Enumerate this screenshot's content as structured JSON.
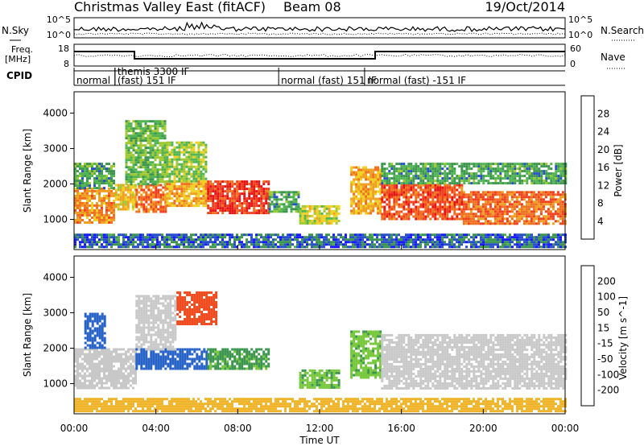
{
  "header": {
    "title": "Christmas Valley East (fitACF)",
    "beam": "Beam 08",
    "date": "19/Oct/2014"
  },
  "noise_panel": {
    "left_label": "N.Sky",
    "right_label": "N.Search",
    "left_ticks": [
      "10^5",
      "10^0"
    ],
    "right_ticks": [
      "10^5",
      "10^0"
    ]
  },
  "freq_panel": {
    "left_label_1": "Freq.",
    "left_label_2": "[MHz]",
    "right_label": "Nave",
    "left_ticks": [
      "18",
      "8"
    ],
    "right_ticks": [
      "60",
      "0"
    ]
  },
  "cpid": {
    "label": "CPID",
    "modes": [
      {
        "name": "normal",
        "start": 0,
        "end": 2
      },
      {
        "name": "themis 3300 IF",
        "start": 2,
        "end": 3,
        "row": 1
      },
      {
        "name": "(fast) 151 IF",
        "start": 2,
        "end": 10
      },
      {
        "name": "normal (fast) 151 IF",
        "start": 10,
        "end": 14.2
      },
      {
        "name": "normal (fast) -151 IF",
        "start": 14.2,
        "end": 24
      }
    ]
  },
  "chart_data": [
    {
      "type": "heatmap",
      "name": "Power",
      "ylabel": "Slant Range [km]",
      "xlabel": "",
      "xlim": [
        0,
        24
      ],
      "ylim": [
        150,
        4600
      ],
      "yticks": [
        1000,
        2000,
        3000,
        4000
      ],
      "colorbar": {
        "label": "Power [dB]",
        "ticks": [
          "4",
          "8",
          "12",
          "16",
          "20",
          "24",
          "28"
        ],
        "colors": [
          "#1a1aff",
          "#2850c8",
          "#3c9650",
          "#50b450",
          "#a0c830",
          "#f0d020",
          "#f0a020",
          "#f07020",
          "#f04020",
          "#e61414"
        ]
      },
      "bands": [
        {
          "x0": 0.0,
          "x1": 2.0,
          "y0": 900,
          "y1": 1900,
          "value": 22
        },
        {
          "x0": 0.0,
          "x1": 2.0,
          "y0": 1900,
          "y1": 2600,
          "value": 10
        },
        {
          "x0": 2.0,
          "x1": 3.0,
          "y0": 1300,
          "y1": 2000,
          "value": 18
        },
        {
          "x0": 3.0,
          "x1": 4.5,
          "y0": 1200,
          "y1": 2000,
          "value": 24
        },
        {
          "x0": 2.5,
          "x1": 4.5,
          "y0": 2000,
          "y1": 3800,
          "value": 12
        },
        {
          "x0": 4.5,
          "x1": 6.5,
          "y0": 1400,
          "y1": 2100,
          "value": 20
        },
        {
          "x0": 4.5,
          "x1": 6.5,
          "y0": 2100,
          "y1": 3200,
          "value": 14
        },
        {
          "x0": 6.5,
          "x1": 9.5,
          "y0": 1200,
          "y1": 2100,
          "value": 28
        },
        {
          "x0": 9.5,
          "x1": 11.0,
          "y0": 1200,
          "y1": 1800,
          "value": 10
        },
        {
          "x0": 11.0,
          "x1": 13.0,
          "y0": 900,
          "y1": 1400,
          "value": 16
        },
        {
          "x0": 13.5,
          "x1": 15.0,
          "y0": 1200,
          "y1": 2500,
          "value": 20
        },
        {
          "x0": 15.0,
          "x1": 19.0,
          "y0": 1000,
          "y1": 2000,
          "value": 26
        },
        {
          "x0": 15.0,
          "x1": 24.0,
          "y0": 2000,
          "y1": 2600,
          "value": 10
        },
        {
          "x0": 19.0,
          "x1": 24.0,
          "y0": 900,
          "y1": 1800,
          "value": 24
        },
        {
          "x0": 0.0,
          "x1": 24.0,
          "y0": 250,
          "y1": 600,
          "value": 6
        }
      ]
    },
    {
      "type": "heatmap",
      "name": "Velocity",
      "ylabel": "Slant Range [km]",
      "xlabel": "Time UT",
      "xlim": [
        0,
        24
      ],
      "ylim": [
        150,
        4600
      ],
      "yticks": [
        1000,
        2000,
        3000,
        4000
      ],
      "xticks": [
        "00:00",
        "04:00",
        "08:00",
        "12:00",
        "16:00",
        "20:00",
        "00:00"
      ],
      "colorbar": {
        "label": "Velocity [m s^-1]",
        "ticks": [
          "200",
          "100",
          "50",
          "15",
          "-15",
          "-50",
          "-100",
          "-200"
        ],
        "colors": [
          "#1e1ee6",
          "#2864c8",
          "#3c9650",
          "#78c83c",
          "#c8c8c8",
          "#f0b428",
          "#f08228",
          "#f04b1e",
          "#e61414"
        ]
      },
      "bands": [
        {
          "x0": 0.0,
          "x1": 3.0,
          "y0": 900,
          "y1": 2000,
          "value": 0
        },
        {
          "x0": 0.5,
          "x1": 1.5,
          "y0": 2000,
          "y1": 3000,
          "value": 150
        },
        {
          "x0": 3.0,
          "x1": 6.5,
          "y0": 1400,
          "y1": 2000,
          "value": 180
        },
        {
          "x0": 5.0,
          "x1": 7.0,
          "y0": 2700,
          "y1": 3600,
          "value": -180
        },
        {
          "x0": 3.0,
          "x1": 5.0,
          "y0": 2000,
          "y1": 3500,
          "value": 0
        },
        {
          "x0": 6.5,
          "x1": 9.5,
          "y0": 1400,
          "y1": 2000,
          "value": 60
        },
        {
          "x0": 11.0,
          "x1": 13.0,
          "y0": 900,
          "y1": 1400,
          "value": 40
        },
        {
          "x0": 13.5,
          "x1": 15.0,
          "y0": 1200,
          "y1": 2500,
          "value": 40
        },
        {
          "x0": 15.0,
          "x1": 24.0,
          "y0": 900,
          "y1": 2400,
          "value": 0
        },
        {
          "x0": 0.0,
          "x1": 24.0,
          "y0": 250,
          "y1": 600,
          "value": -30
        }
      ]
    }
  ]
}
